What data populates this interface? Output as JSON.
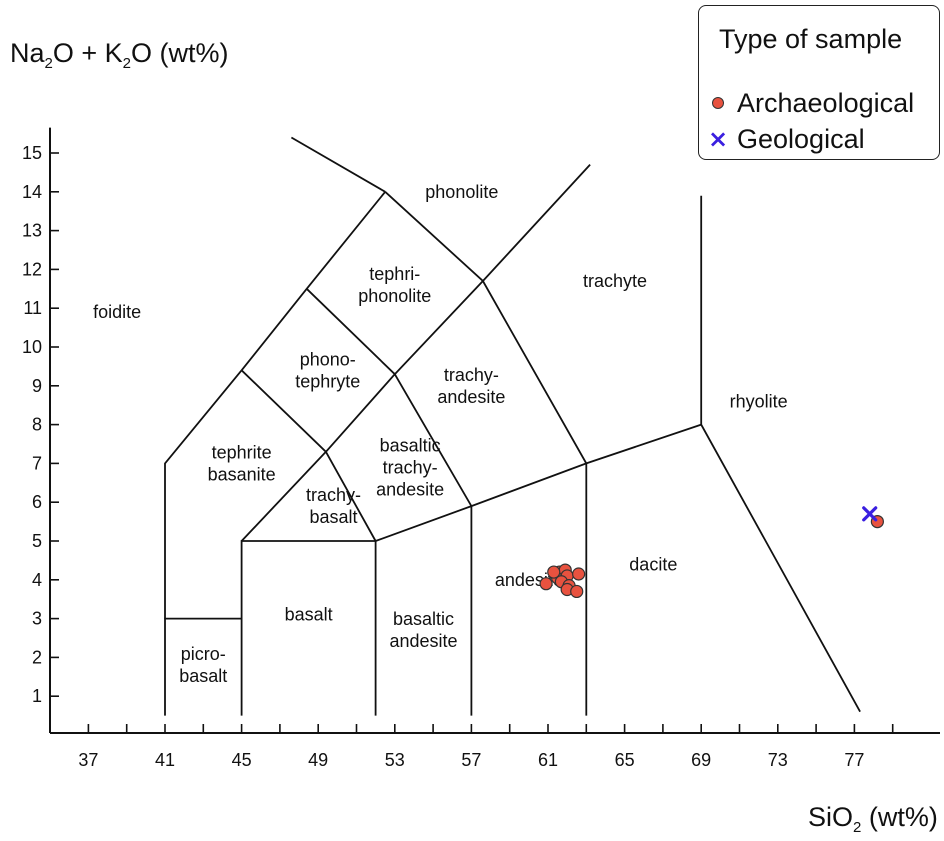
{
  "chart_data": {
    "type": "scatter",
    "title": "",
    "xlabel": {
      "main": "SiO",
      "sub": "2",
      "unit": " (wt%)"
    },
    "ylabel": {
      "pre": "Na",
      "sub1": "2",
      "mid": "O + K",
      "sub2": "2",
      "post": "O (wt%)"
    },
    "xlim": [
      35,
      81
    ],
    "ylim": [
      0,
      15.5
    ],
    "x_ticks_labeled": [
      37,
      41,
      45,
      49,
      53,
      57,
      61,
      65,
      69,
      73,
      77
    ],
    "x_ticks_minor": [
      39,
      43,
      47,
      51,
      55,
      59,
      63,
      67,
      71,
      75,
      79
    ],
    "y_ticks": [
      1,
      2,
      3,
      4,
      5,
      6,
      7,
      8,
      9,
      10,
      11,
      12,
      13,
      14,
      15
    ],
    "grid": false,
    "legend": {
      "title": "Type of sample",
      "position": "top-right",
      "items": [
        {
          "label": "Archaeological",
          "marker": "circle",
          "color": "#e8523f"
        },
        {
          "label": "Geological",
          "marker": "x",
          "color": "#3a1fe0"
        }
      ]
    },
    "tas_boundaries": [
      [
        [
          41,
          0.5
        ],
        [
          41,
          3
        ],
        [
          45,
          3
        ]
      ],
      [
        [
          41,
          3
        ],
        [
          41,
          7
        ],
        [
          45,
          9.4
        ]
      ],
      [
        [
          45,
          0.5
        ],
        [
          45,
          5
        ],
        [
          52,
          5
        ],
        [
          52,
          0.5
        ]
      ],
      [
        [
          45,
          5
        ],
        [
          49.4,
          7.3
        ],
        [
          52,
          5
        ]
      ],
      [
        [
          45,
          9.4
        ],
        [
          49.4,
          7.3
        ],
        [
          53,
          9.3
        ],
        [
          57,
          5.9
        ],
        [
          57,
          0.5
        ]
      ],
      [
        [
          45,
          9.4
        ],
        [
          48.4,
          11.5
        ],
        [
          52.5,
          14
        ]
      ],
      [
        [
          48.4,
          11.5
        ],
        [
          53,
          9.3
        ],
        [
          57.6,
          11.7
        ]
      ],
      [
        [
          52,
          5
        ],
        [
          57,
          5.9
        ],
        [
          63,
          7
        ],
        [
          69,
          8
        ]
      ],
      [
        [
          52.5,
          14
        ],
        [
          57.6,
          11.7
        ],
        [
          63,
          7
        ],
        [
          63,
          0.5
        ]
      ],
      [
        [
          57.6,
          11.7
        ],
        [
          63.2,
          14.7
        ]
      ],
      [
        [
          47.6,
          15.4
        ],
        [
          52.5,
          14
        ]
      ],
      [
        [
          69,
          13.9
        ],
        [
          69,
          8
        ],
        [
          77.3,
          0.6
        ]
      ]
    ],
    "field_labels": [
      {
        "lines": [
          "foidite"
        ],
        "x": 38.5,
        "y": 10.9
      },
      {
        "lines": [
          "phonolite"
        ],
        "x": 56.5,
        "y": 14.0
      },
      {
        "lines": [
          "trachyte"
        ],
        "x": 64.5,
        "y": 11.7
      },
      {
        "lines": [
          "tephri-",
          "phonolite"
        ],
        "x": 53.0,
        "y": 11.6
      },
      {
        "lines": [
          "phono-",
          "tephryte"
        ],
        "x": 49.5,
        "y": 9.4
      },
      {
        "lines": [
          "trachy-",
          "andesite"
        ],
        "x": 57.0,
        "y": 9.0
      },
      {
        "lines": [
          "rhyolite"
        ],
        "x": 72.0,
        "y": 8.6
      },
      {
        "lines": [
          "tephrite",
          "basanite"
        ],
        "x": 45.0,
        "y": 7.0
      },
      {
        "lines": [
          "basaltic",
          "trachy-",
          "andesite"
        ],
        "x": 53.8,
        "y": 6.9
      },
      {
        "lines": [
          "trachy-",
          "basalt"
        ],
        "x": 49.8,
        "y": 5.9
      },
      {
        "lines": [
          "dacite"
        ],
        "x": 66.5,
        "y": 4.4
      },
      {
        "lines": [
          "andesite"
        ],
        "x": 60.0,
        "y": 4.0
      },
      {
        "lines": [
          "basalt"
        ],
        "x": 48.5,
        "y": 3.1
      },
      {
        "lines": [
          "basaltic",
          "andesite"
        ],
        "x": 54.5,
        "y": 2.7
      },
      {
        "lines": [
          "picro-",
          "basalt"
        ],
        "x": 43.0,
        "y": 1.8
      }
    ],
    "series": [
      {
        "name": "Archaeological",
        "marker": "circle",
        "color": "#e8523f",
        "points": [
          [
            60.9,
            3.9
          ],
          [
            61.5,
            4.05
          ],
          [
            61.6,
            4.2
          ],
          [
            61.8,
            4.15
          ],
          [
            61.9,
            4.25
          ],
          [
            62.0,
            4.1
          ],
          [
            61.7,
            3.95
          ],
          [
            62.1,
            3.85
          ],
          [
            62.0,
            3.75
          ],
          [
            62.5,
            3.7
          ],
          [
            62.6,
            4.15
          ],
          [
            61.3,
            4.2
          ],
          [
            78.2,
            5.5
          ]
        ]
      },
      {
        "name": "Geological",
        "marker": "x",
        "color": "#3a1fe0",
        "points": [
          [
            77.8,
            5.7
          ]
        ]
      }
    ]
  }
}
